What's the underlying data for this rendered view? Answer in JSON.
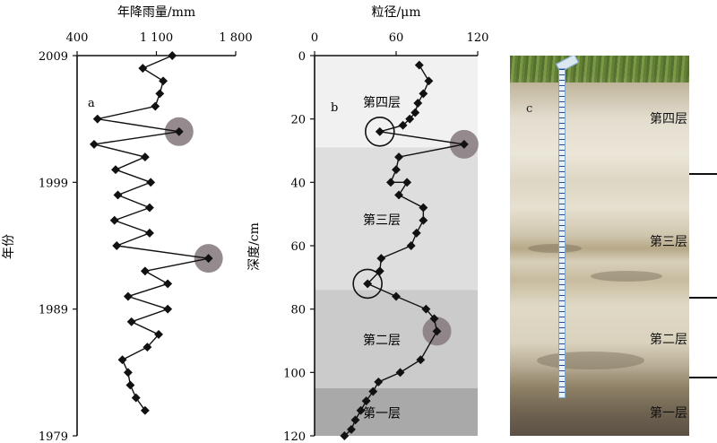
{
  "chart_data": [
    {
      "type": "line",
      "panel_label": "a",
      "title": "年降雨量/mm",
      "ylabel": "年份",
      "x_ticks": [
        "400",
        "1 100",
        "1 800"
      ],
      "y_ticks": [
        "2009",
        "1999",
        "1989",
        "1979"
      ],
      "xlim": [
        400,
        1800
      ],
      "ylim": [
        1979,
        2009
      ],
      "series": [
        {
          "x": [
            1240,
            980,
            1160,
            1130,
            1090,
            580,
            1300,
            550,
            1000,
            740,
            1050,
            760,
            1040,
            730,
            1040,
            750,
            1560,
            1000,
            1200,
            850,
            1200,
            880,
            1120,
            1020,
            800,
            850,
            870,
            920,
            1000
          ],
          "y": [
            2009,
            2008,
            2007,
            2006,
            2005,
            2004,
            2003,
            2002,
            2001,
            2000,
            1999,
            1998,
            1997,
            1996,
            1995,
            1994,
            1993,
            1992,
            1991,
            1990,
            1989,
            1988,
            1987,
            1986,
            1985,
            1984,
            1983,
            1982,
            1981
          ]
        }
      ],
      "highlights": [
        {
          "x": 1300,
          "y": 2003
        },
        {
          "x": 1560,
          "y": 1993
        }
      ]
    },
    {
      "type": "line",
      "panel_label": "b",
      "title": "粒径/μm",
      "ylabel": "深度/cm",
      "x_ticks": [
        "0",
        "60",
        "120"
      ],
      "y_ticks": [
        "0",
        "20",
        "40",
        "60",
        "80",
        "100",
        "120"
      ],
      "xlim": [
        0,
        120
      ],
      "ylim": [
        0,
        120
      ],
      "layers": [
        {
          "name": "第四层",
          "top": 0,
          "bottom": 29
        },
        {
          "name": "第三层",
          "top": 29,
          "bottom": 74
        },
        {
          "name": "第二层",
          "top": 74,
          "bottom": 105
        },
        {
          "name": "第一层",
          "top": 105,
          "bottom": 120
        }
      ],
      "series": [
        {
          "x": [
            77,
            84,
            80,
            76,
            74,
            70,
            65,
            48,
            110,
            62,
            60,
            56,
            68,
            62,
            80,
            80,
            75,
            71,
            49,
            48,
            39,
            60,
            82,
            88,
            90,
            78,
            63,
            47,
            43,
            38,
            34,
            30,
            27,
            22
          ],
          "y": [
            3,
            8,
            12,
            15,
            18,
            20,
            22,
            24,
            28,
            32,
            36,
            40,
            40,
            44,
            48,
            52,
            56,
            60,
            64,
            68,
            72,
            76,
            80,
            83,
            87,
            96,
            100,
            103,
            106,
            109,
            112,
            115,
            118,
            121
          ]
        }
      ],
      "highlights_open": [
        {
          "x": 48,
          "y": 24
        },
        {
          "x": 39,
          "y": 72
        }
      ],
      "highlights_filled": [
        {
          "x": 110,
          "y": 28
        },
        {
          "x": 90,
          "y": 87
        }
      ]
    }
  ],
  "photo": {
    "panel_label": "c",
    "layer_labels": [
      "第四层",
      "第三层",
      "第二层",
      "第一层"
    ]
  }
}
